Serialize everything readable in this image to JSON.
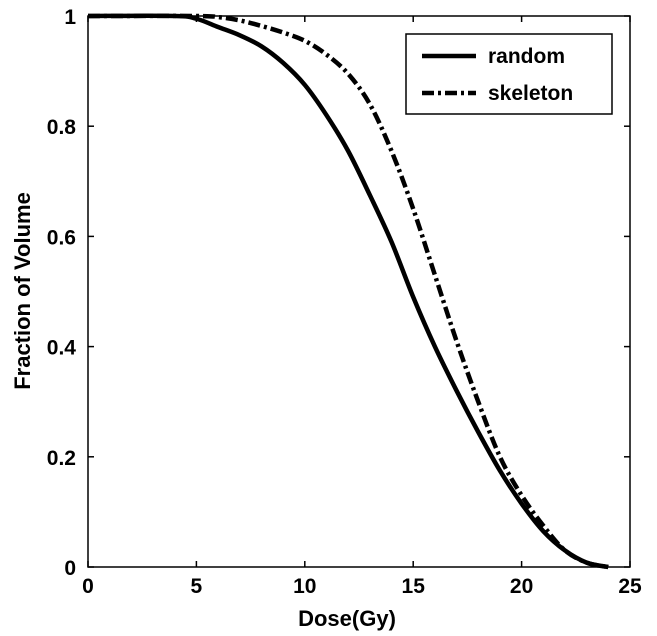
{
  "chart_data": {
    "type": "line",
    "xlabel": "Dose(Gy)",
    "ylabel": "Fraction of Volume",
    "xlim": [
      0,
      25
    ],
    "ylim": [
      0,
      1
    ],
    "xticks": [
      0,
      5,
      10,
      15,
      20,
      25
    ],
    "yticks": [
      0,
      0.2,
      0.4,
      0.6,
      0.8,
      1
    ],
    "ytick_labels": [
      "0",
      "0.2",
      "0.4",
      "0.6",
      "0.8",
      "1"
    ],
    "xtick_labels": [
      "0",
      "5",
      "10",
      "15",
      "20",
      "25"
    ],
    "grid": false,
    "legend_position": "top-right",
    "series": [
      {
        "name": "random",
        "style": "solid",
        "color": "#000000",
        "x": [
          0,
          4,
          5,
          6,
          7,
          8,
          9,
          10,
          11,
          12,
          13,
          14,
          15,
          16,
          17,
          18,
          19,
          20,
          21,
          22,
          23,
          24
        ],
        "y": [
          1,
          1,
          0.995,
          0.98,
          0.965,
          0.945,
          0.915,
          0.875,
          0.82,
          0.755,
          0.675,
          0.59,
          0.49,
          0.4,
          0.32,
          0.245,
          0.175,
          0.115,
          0.065,
          0.03,
          0.008,
          0
        ]
      },
      {
        "name": "skeleton",
        "style": "dashdot",
        "color": "#000000",
        "x": [
          0,
          5,
          6,
          7,
          8,
          9,
          10,
          11,
          12,
          13,
          14,
          15,
          16,
          17,
          18,
          19,
          20,
          21,
          22,
          23,
          24
        ],
        "y": [
          1,
          1,
          0.998,
          0.992,
          0.982,
          0.97,
          0.955,
          0.93,
          0.895,
          0.84,
          0.755,
          0.65,
          0.53,
          0.41,
          0.3,
          0.2,
          0.13,
          0.075,
          0.03,
          0.008,
          0
        ]
      }
    ]
  }
}
